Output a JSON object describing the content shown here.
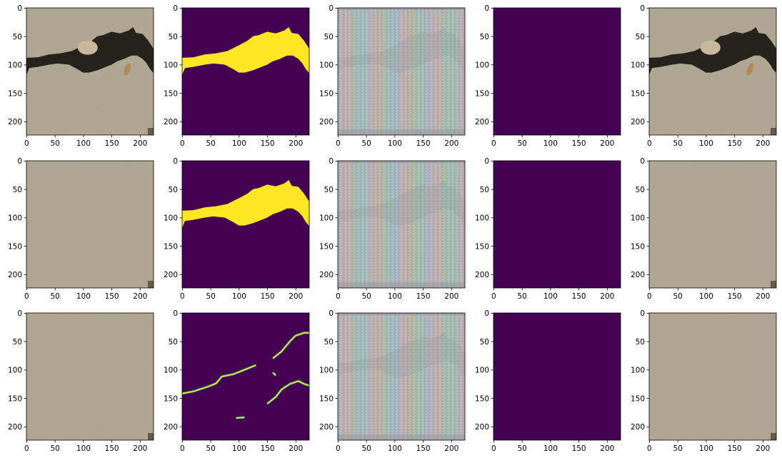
{
  "figure": {
    "background": "#ffffff",
    "rows": 3,
    "cols": 5,
    "x_ticks": [
      "0",
      "50",
      "100",
      "150",
      "200"
    ],
    "y_ticks": [
      "0",
      "50",
      "100",
      "150",
      "200"
    ],
    "x_tick_values": [
      0,
      50,
      100,
      150,
      200
    ],
    "y_tick_values": [
      0,
      50,
      100,
      150,
      200
    ],
    "axis_extent": [
      0,
      224
    ],
    "colors": {
      "wall": "#a8a089",
      "wall_dark": "#8f8772",
      "crack": "#1a1812",
      "mask_background": "#440154",
      "mask_foreground": "#fde725",
      "mask_edge": "#21918c",
      "noise_a": "#7fb0c8",
      "noise_b": "#c8a0b0",
      "noise_c": "#9fc09a",
      "noise_base": "#b5b5b0"
    }
  },
  "panels": [
    {
      "row": 0,
      "col": 0,
      "kind": "input-photo-crack"
    },
    {
      "row": 0,
      "col": 1,
      "kind": "mask-large-crack"
    },
    {
      "row": 0,
      "col": 2,
      "kind": "noise-output"
    },
    {
      "row": 0,
      "col": 3,
      "kind": "empty-mask"
    },
    {
      "row": 0,
      "col": 4,
      "kind": "input-photo-crack"
    },
    {
      "row": 1,
      "col": 0,
      "kind": "input-photo-plain"
    },
    {
      "row": 1,
      "col": 1,
      "kind": "mask-large-crack"
    },
    {
      "row": 1,
      "col": 2,
      "kind": "noise-output"
    },
    {
      "row": 1,
      "col": 3,
      "kind": "empty-mask"
    },
    {
      "row": 1,
      "col": 4,
      "kind": "input-photo-plain"
    },
    {
      "row": 2,
      "col": 0,
      "kind": "input-photo-plain"
    },
    {
      "row": 2,
      "col": 1,
      "kind": "mask-thin-crack"
    },
    {
      "row": 2,
      "col": 2,
      "kind": "noise-output"
    },
    {
      "row": 2,
      "col": 3,
      "kind": "empty-mask"
    },
    {
      "row": 2,
      "col": 4,
      "kind": "input-photo-plain"
    }
  ]
}
